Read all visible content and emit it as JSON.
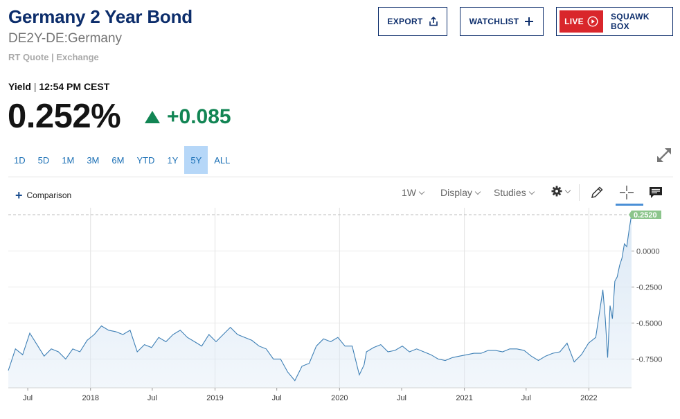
{
  "header": {
    "title": "Germany 2 Year Bond",
    "symbol": "DE2Y-DE:Germany",
    "quote_source": "RT Quote | Exchange",
    "export_label": "EXPORT",
    "watchlist_label": "WATCHLIST",
    "live_label": "LIVE",
    "squawk_label": "SQUAWK BOX"
  },
  "quote": {
    "type_label": "Yield",
    "separator": "|",
    "time": "12:54 PM CEST",
    "price": "0.252%",
    "change": "+0.085",
    "change_color": "#128554"
  },
  "ranges": [
    {
      "label": "1D",
      "active": false
    },
    {
      "label": "5D",
      "active": false
    },
    {
      "label": "1M",
      "active": false
    },
    {
      "label": "3M",
      "active": false
    },
    {
      "label": "6M",
      "active": false
    },
    {
      "label": "YTD",
      "active": false
    },
    {
      "label": "1Y",
      "active": false
    },
    {
      "label": "5Y",
      "active": true
    },
    {
      "label": "ALL",
      "active": false
    }
  ],
  "toolbar": {
    "comparison_label": "Comparison",
    "interval_label": "1W",
    "display_label": "Display",
    "studies_label": "Studies"
  },
  "chart_data": {
    "type": "area",
    "line_color": "#3d7fb5",
    "fill_color": "#dbe8f5",
    "last_value": 0.252,
    "last_value_label": "0.2520",
    "ylim": [
      -0.95,
      0.3
    ],
    "yticks": [
      0.0,
      -0.25,
      -0.5,
      -0.75
    ],
    "ytick_labels": [
      "0.0000",
      "-0.2500",
      "-0.5000",
      "-0.7500"
    ],
    "xlim": [
      "2017-05-05",
      "2022-05-06"
    ],
    "xticks": [
      {
        "date": "2017-07-01",
        "label": "Jul"
      },
      {
        "date": "2018-01-01",
        "label": "2018"
      },
      {
        "date": "2018-07-01",
        "label": "Jul"
      },
      {
        "date": "2019-01-01",
        "label": "2019"
      },
      {
        "date": "2019-07-01",
        "label": "Jul"
      },
      {
        "date": "2020-01-01",
        "label": "2020"
      },
      {
        "date": "2020-07-01",
        "label": "Jul"
      },
      {
        "date": "2021-01-01",
        "label": "2021"
      },
      {
        "date": "2021-07-01",
        "label": "Jul"
      },
      {
        "date": "2022-01-01",
        "label": "2022"
      }
    ],
    "x": [
      "2017-05-05",
      "2017-05-26",
      "2017-06-16",
      "2017-07-07",
      "2017-07-28",
      "2017-08-18",
      "2017-09-08",
      "2017-09-29",
      "2017-10-20",
      "2017-11-10",
      "2017-12-01",
      "2017-12-22",
      "2018-01-12",
      "2018-02-02",
      "2018-02-23",
      "2018-03-16",
      "2018-04-06",
      "2018-04-27",
      "2018-05-18",
      "2018-06-08",
      "2018-06-29",
      "2018-07-20",
      "2018-08-10",
      "2018-08-31",
      "2018-09-21",
      "2018-10-12",
      "2018-11-02",
      "2018-11-23",
      "2018-12-14",
      "2019-01-04",
      "2019-01-25",
      "2019-02-15",
      "2019-03-08",
      "2019-03-29",
      "2019-04-19",
      "2019-05-10",
      "2019-05-31",
      "2019-06-21",
      "2019-07-12",
      "2019-08-02",
      "2019-08-23",
      "2019-09-13",
      "2019-10-04",
      "2019-10-25",
      "2019-11-15",
      "2019-12-06",
      "2019-12-27",
      "2020-01-17",
      "2020-02-07",
      "2020-02-28",
      "2020-03-13",
      "2020-03-20",
      "2020-04-10",
      "2020-05-01",
      "2020-05-22",
      "2020-06-12",
      "2020-07-03",
      "2020-07-24",
      "2020-08-14",
      "2020-09-04",
      "2020-09-25",
      "2020-10-16",
      "2020-11-06",
      "2020-11-27",
      "2020-12-18",
      "2021-01-08",
      "2021-01-29",
      "2021-02-19",
      "2021-03-12",
      "2021-04-02",
      "2021-04-23",
      "2021-05-14",
      "2021-06-04",
      "2021-06-25",
      "2021-07-16",
      "2021-08-06",
      "2021-08-27",
      "2021-09-17",
      "2021-10-08",
      "2021-10-29",
      "2021-11-19",
      "2021-12-10",
      "2021-12-31",
      "2022-01-21",
      "2022-02-11",
      "2022-02-18",
      "2022-02-25",
      "2022-03-04",
      "2022-03-11",
      "2022-03-18",
      "2022-03-25",
      "2022-04-01",
      "2022-04-08",
      "2022-04-15",
      "2022-04-22",
      "2022-04-29",
      "2022-05-06"
    ],
    "values": [
      -0.83,
      -0.68,
      -0.72,
      -0.57,
      -0.65,
      -0.73,
      -0.68,
      -0.7,
      -0.75,
      -0.68,
      -0.7,
      -0.62,
      -0.58,
      -0.52,
      -0.55,
      -0.56,
      -0.58,
      -0.55,
      -0.7,
      -0.65,
      -0.67,
      -0.6,
      -0.63,
      -0.58,
      -0.55,
      -0.6,
      -0.63,
      -0.66,
      -0.58,
      -0.63,
      -0.58,
      -0.53,
      -0.58,
      -0.6,
      -0.62,
      -0.66,
      -0.68,
      -0.75,
      -0.75,
      -0.84,
      -0.9,
      -0.8,
      -0.78,
      -0.66,
      -0.61,
      -0.63,
      -0.6,
      -0.66,
      -0.66,
      -0.86,
      -0.79,
      -0.7,
      -0.67,
      -0.65,
      -0.7,
      -0.69,
      -0.66,
      -0.7,
      -0.68,
      -0.7,
      -0.72,
      -0.75,
      -0.76,
      -0.74,
      -0.73,
      -0.72,
      -0.71,
      -0.71,
      -0.69,
      -0.69,
      -0.7,
      -0.68,
      -0.68,
      -0.69,
      -0.73,
      -0.76,
      -0.73,
      -0.71,
      -0.7,
      -0.64,
      -0.77,
      -0.72,
      -0.64,
      -0.6,
      -0.27,
      -0.47,
      -0.74,
      -0.38,
      -0.47,
      -0.21,
      -0.18,
      -0.1,
      -0.05,
      0.05,
      0.03,
      0.15,
      0.252
    ]
  }
}
